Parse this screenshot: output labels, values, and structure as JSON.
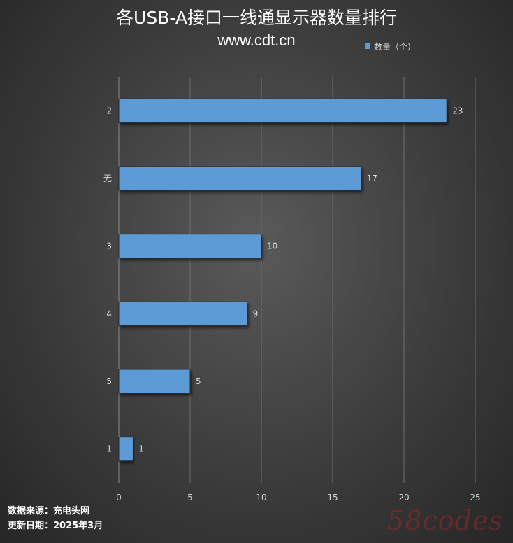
{
  "chart_data": {
    "type": "bar",
    "orientation": "horizontal",
    "title": "各USB-A接口一线通显示器数量排行",
    "subtitle": "www.cdt.cn",
    "categories": [
      "2",
      "无",
      "3",
      "4",
      "5",
      "1"
    ],
    "series": [
      {
        "name": "数量（个）",
        "values": [
          23,
          17,
          10,
          9,
          5,
          1
        ]
      }
    ],
    "xlim": [
      0,
      25
    ],
    "xticks": [
      0,
      5,
      10,
      15,
      20,
      25
    ],
    "grid": "vertical",
    "legend": "top-right",
    "data_labels": true,
    "colors": {
      "bar": "#5b9bd5",
      "grid": "#6e6e6e",
      "text": "#d9d9d9"
    }
  },
  "footer": {
    "source": "数据来源：充电头网",
    "date": "更新日期：2025年3月"
  },
  "watermark": "58codes"
}
